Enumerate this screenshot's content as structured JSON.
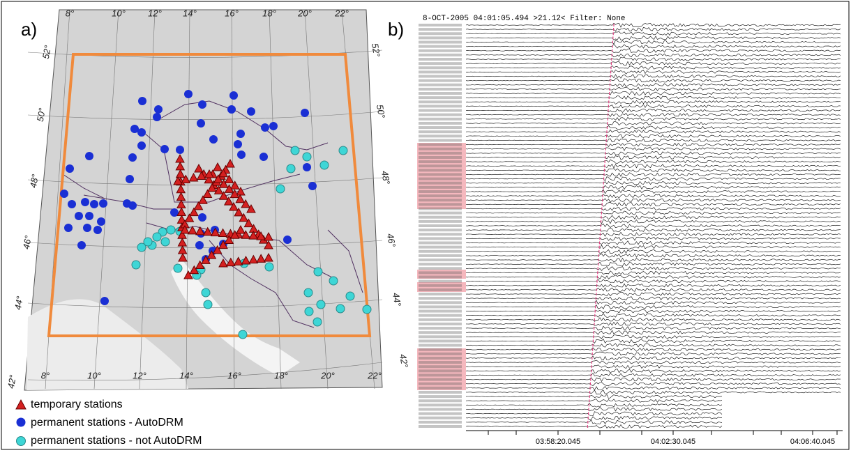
{
  "figure": {
    "panel_a": {
      "label": "a)",
      "lon_top": [
        "8°",
        "10°",
        "12°",
        "14°",
        "16°",
        "18°",
        "20°",
        "22°"
      ],
      "lon_bottom": [
        "8°",
        "10°",
        "12°",
        "14°",
        "16°",
        "18°",
        "20°",
        "22°"
      ],
      "lat_left": [
        "52°",
        "50°",
        "48°",
        "46°",
        "44°",
        "42°"
      ],
      "lat_right": [
        "52°",
        "50°",
        "48°",
        "46°",
        "44°",
        "42°"
      ],
      "legend": [
        "temporary stations",
        "permanent stations - AutoDRM",
        "permanent stations - not AutoDRM"
      ]
    },
    "panel_b": {
      "label": "b)",
      "header": "8-OCT-2005 04:01:05.494  >21.12<   Filter: None",
      "time_ticks": [
        "03:58:20.045",
        "04:02:30.045",
        "04:06:40.045"
      ]
    }
  }
}
